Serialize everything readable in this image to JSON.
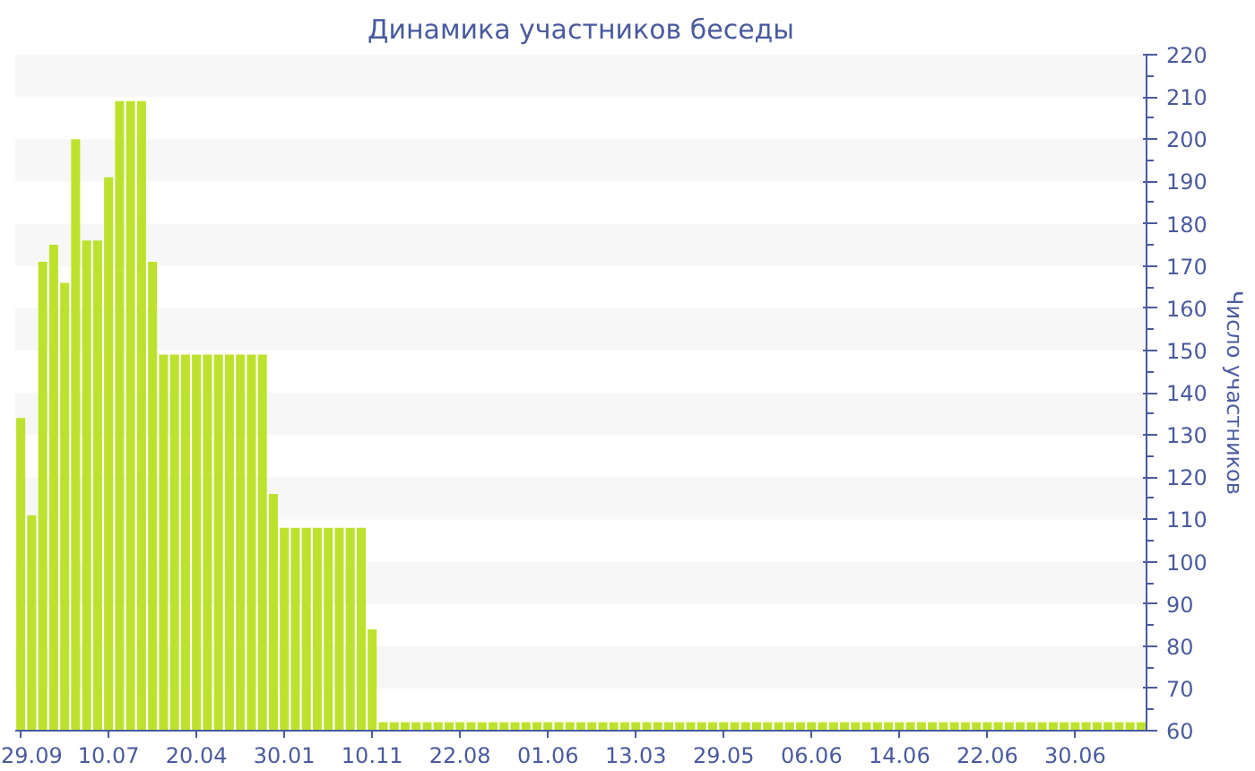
{
  "chart_data": {
    "type": "bar",
    "title": "Динамика участников беседы",
    "ylabel": "Число участников",
    "categories": [
      "29.09",
      null,
      null,
      null,
      null,
      null,
      null,
      null,
      "10.07",
      null,
      null,
      null,
      null,
      null,
      null,
      null,
      "20.04",
      null,
      null,
      null,
      null,
      null,
      null,
      null,
      "30.01",
      null,
      null,
      null,
      null,
      null,
      null,
      null,
      "10.11",
      null,
      null,
      null,
      null,
      null,
      null,
      null,
      "22.08",
      null,
      null,
      null,
      null,
      null,
      null,
      null,
      "01.06",
      null,
      null,
      null,
      null,
      null,
      null,
      null,
      "13.03",
      null,
      null,
      null,
      null,
      null,
      null,
      null,
      "29.05",
      null,
      null,
      null,
      null,
      null,
      null,
      null,
      "06.06",
      null,
      null,
      null,
      null,
      null,
      null,
      null,
      "14.06",
      null,
      null,
      null,
      null,
      null,
      null,
      null,
      "22.06",
      null,
      null,
      null,
      null,
      null,
      null,
      null,
      "30.06",
      null,
      null,
      null,
      null,
      null,
      null
    ],
    "values": [
      134,
      111,
      171,
      175,
      166,
      200,
      176,
      176,
      191,
      209,
      209,
      209,
      171,
      149,
      149,
      149,
      149,
      149,
      149,
      149,
      149,
      149,
      149,
      116,
      108,
      108,
      108,
      108,
      108,
      108,
      108,
      108,
      84,
      62,
      62,
      62,
      62,
      62,
      62,
      62,
      62,
      62,
      62,
      62,
      62,
      62,
      62,
      62,
      62,
      62,
      62,
      62,
      62,
      62,
      62,
      62,
      62,
      62,
      62,
      62,
      62,
      62,
      62,
      62,
      62,
      62,
      62,
      62,
      62,
      62,
      62,
      62,
      62,
      62,
      62,
      62,
      62,
      62,
      62,
      62,
      62,
      62,
      62,
      62,
      62,
      62,
      62,
      62,
      62,
      62,
      62,
      62,
      62,
      62,
      62,
      62,
      62,
      62,
      62,
      62,
      62,
      62,
      62
    ],
    "color": "#bde22e",
    "ylim": [
      60,
      220
    ],
    "yticks": [
      60,
      70,
      80,
      90,
      100,
      110,
      120,
      130,
      140,
      150,
      160,
      170,
      180,
      190,
      200,
      210,
      220
    ]
  }
}
